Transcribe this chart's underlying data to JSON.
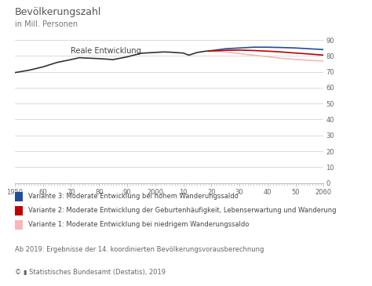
{
  "title": "Bevölkerungszahl",
  "subtitle": "in Mill. Personen",
  "annotation": "Reale Entwicklung",
  "footer1": "Ab 2019: Ergebnisse der 14. koordinierten Bevölkerungsvorausberechnung",
  "footer2": "© ▮ Statistisches Bundesamt (Destatis), 2019",
  "background_color": "#ffffff",
  "plot_bg_color": "#ffffff",
  "real_color": "#333333",
  "v3_color": "#1f4e99",
  "v2_color": "#c00000",
  "v1_color": "#f4b8b8",
  "ylim": [
    0,
    90
  ],
  "yticks": [
    0,
    10,
    20,
    30,
    40,
    50,
    60,
    70,
    80,
    90
  ],
  "xlim_start": 1950,
  "xlim_end": 2060,
  "xticks": [
    1950,
    1960,
    1970,
    1980,
    1990,
    2000,
    2010,
    2020,
    2030,
    2040,
    2050,
    2060
  ],
  "xtick_labels": [
    "1950",
    "60",
    "70",
    "80",
    "90",
    "2000",
    "10",
    "20",
    "30",
    "40",
    "50",
    "2060"
  ],
  "legend": [
    {
      "label": "Variante 3: Moderate Entwicklung bei hohem Wanderungssaldo",
      "color": "#1f4e99"
    },
    {
      "label": "Variante 2: Moderate Entwicklung der Geburtenhäufigkeit, Lebenserwartung und Wanderung",
      "color": "#c00000"
    },
    {
      "label": "Variante 1: Moderate Entwicklung bei niedrigem Wanderungssaldo",
      "color": "#f4b8b8"
    }
  ],
  "real_x": [
    1950,
    1955,
    1960,
    1965,
    1970,
    1973,
    1975,
    1980,
    1985,
    1990,
    1995,
    2000,
    2003,
    2005,
    2010,
    2012,
    2015,
    2018,
    2019
  ],
  "real_y": [
    69.5,
    71.0,
    73.1,
    75.9,
    77.7,
    78.9,
    78.7,
    78.3,
    77.7,
    79.4,
    81.7,
    82.2,
    82.5,
    82.4,
    81.8,
    80.5,
    82.2,
    83.0,
    83.1
  ],
  "v3_x": [
    2019,
    2025,
    2030,
    2035,
    2040,
    2045,
    2050,
    2055,
    2060
  ],
  "v3_y": [
    83.1,
    84.5,
    85.0,
    85.5,
    85.5,
    85.3,
    85.0,
    84.5,
    84.0
  ],
  "v2_x": [
    2019,
    2025,
    2030,
    2035,
    2040,
    2045,
    2050,
    2055,
    2060
  ],
  "v2_y": [
    83.1,
    83.5,
    83.7,
    83.4,
    83.0,
    82.5,
    81.8,
    81.2,
    80.5
  ],
  "v1_x": [
    2019,
    2025,
    2030,
    2035,
    2040,
    2045,
    2050,
    2055,
    2060
  ],
  "v1_y": [
    83.1,
    82.5,
    81.5,
    80.5,
    79.5,
    78.5,
    77.8,
    77.2,
    76.8
  ],
  "title_fontsize": 9,
  "subtitle_fontsize": 7,
  "tick_fontsize": 6,
  "legend_fontsize": 6,
  "footer_fontsize": 6,
  "annotation_fontsize": 7
}
